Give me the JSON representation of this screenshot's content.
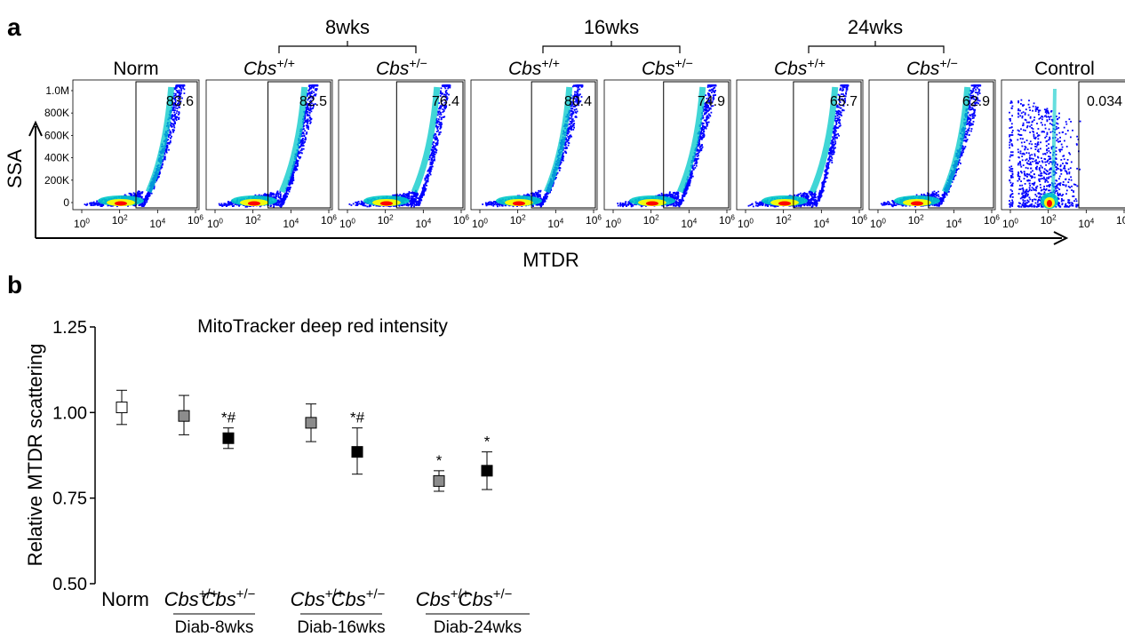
{
  "panel_labels": {
    "a": "a",
    "b": "b"
  },
  "colors": {
    "density_low": "#0000ff",
    "density_mid": "#00c8c8",
    "density_high": "#ffff00",
    "density_peak": "#ff0000",
    "gray_marker": "#8c8c8c",
    "black_marker": "#000000",
    "white_marker": "#ffffff"
  },
  "panel_a": {
    "group_headers": [
      "8wks",
      "16wks",
      "24wks"
    ],
    "plot_titles": [
      {
        "main": "Norm",
        "sup": ""
      },
      {
        "main": "Cbs",
        "sup": "+/+"
      },
      {
        "main": "Cbs",
        "sup": "+/−"
      },
      {
        "main": "Cbs",
        "sup": "+/+"
      },
      {
        "main": "Cbs",
        "sup": "+/−"
      },
      {
        "main": "Cbs",
        "sup": "+/+"
      },
      {
        "main": "Cbs",
        "sup": "+/−"
      },
      {
        "main": "Control",
        "sup": ""
      }
    ],
    "gate_values": [
      "83.6",
      "82.5",
      "76.4",
      "80.4",
      "74.9",
      "65.7",
      "62.9",
      "0.034"
    ],
    "y_ticks": [
      "1.0M",
      "800K",
      "600K",
      "400K",
      "200K",
      "0"
    ],
    "x_ticks": [
      {
        "base": "10",
        "exp": "0"
      },
      {
        "base": "10",
        "exp": "2"
      },
      {
        "base": "10",
        "exp": "4"
      },
      {
        "base": "10",
        "exp": "6"
      }
    ],
    "y_axis_label": "SSA",
    "x_axis_label": "MTDR"
  },
  "chart_data": {
    "type": "scatter",
    "title": "MitoTracker deep red intensity",
    "ylabel": "Relative MTDR scattering",
    "ylim": [
      0.5,
      1.25
    ],
    "y_ticks": [
      "1.25",
      "1.00",
      "0.75",
      "0.50"
    ],
    "categories": [
      {
        "main": "Norm",
        "sup": ""
      },
      {
        "main": "Cbs",
        "sup": "+/+"
      },
      {
        "main": "Cbs",
        "sup": "+/−"
      },
      {
        "main": "Cbs",
        "sup": "+/+"
      },
      {
        "main": "Cbs",
        "sup": "+/−"
      },
      {
        "main": "Cbs",
        "sup": "+/+"
      },
      {
        "main": "Cbs",
        "sup": "+/−"
      }
    ],
    "group_labels": [
      "Diab-8wks",
      "Diab-16wks",
      "Diab-24wks"
    ],
    "points": [
      {
        "value": 1.015,
        "err_low": 0.965,
        "err_high": 1.065,
        "fill": "white",
        "annotation": ""
      },
      {
        "value": 0.99,
        "err_low": 0.935,
        "err_high": 1.05,
        "fill": "gray",
        "annotation": ""
      },
      {
        "value": 0.925,
        "err_low": 0.895,
        "err_high": 0.955,
        "fill": "black",
        "annotation": "*#"
      },
      {
        "value": 0.97,
        "err_low": 0.915,
        "err_high": 1.025,
        "fill": "gray",
        "annotation": ""
      },
      {
        "value": 0.885,
        "err_low": 0.82,
        "err_high": 0.955,
        "fill": "black",
        "annotation": "*#"
      },
      {
        "value": 0.8,
        "err_low": 0.77,
        "err_high": 0.83,
        "fill": "gray",
        "annotation": "*"
      },
      {
        "value": 0.83,
        "err_low": 0.775,
        "err_high": 0.885,
        "fill": "black",
        "annotation": "*"
      }
    ]
  }
}
